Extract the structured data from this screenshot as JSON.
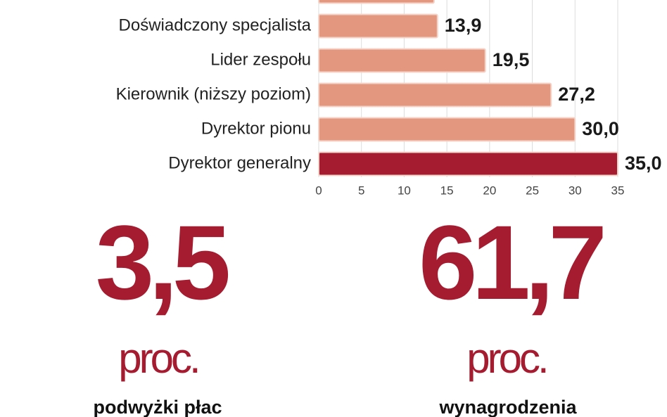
{
  "chart_data": {
    "type": "bar",
    "orientation": "horizontal",
    "categories": [
      null,
      "Doświadczony specjalista",
      "Lider zespołu",
      "Kierownik (niższy poziom)",
      "Dyrektor pionu",
      "Dyrektor generalny"
    ],
    "values": [
      13.5,
      13.9,
      19.5,
      27.2,
      30.0,
      35.0
    ],
    "value_labels": [
      null,
      "13,9",
      "19,5",
      "27,2",
      "30,0",
      "35,0"
    ],
    "colors": [
      "#e4977f",
      "#e4977f",
      "#e4977f",
      "#e4977f",
      "#e4977f",
      "#a51c30"
    ],
    "xlim": [
      0,
      35
    ],
    "xticks": [
      0,
      5,
      10,
      15,
      20,
      25,
      30,
      35
    ],
    "grid": true
  },
  "stats": [
    {
      "value": "3,5",
      "unit": "proc.",
      "caption": "podwyżki płac"
    },
    {
      "value": "61,7",
      "unit": "proc.",
      "caption": "wynagrodzenia"
    }
  ]
}
